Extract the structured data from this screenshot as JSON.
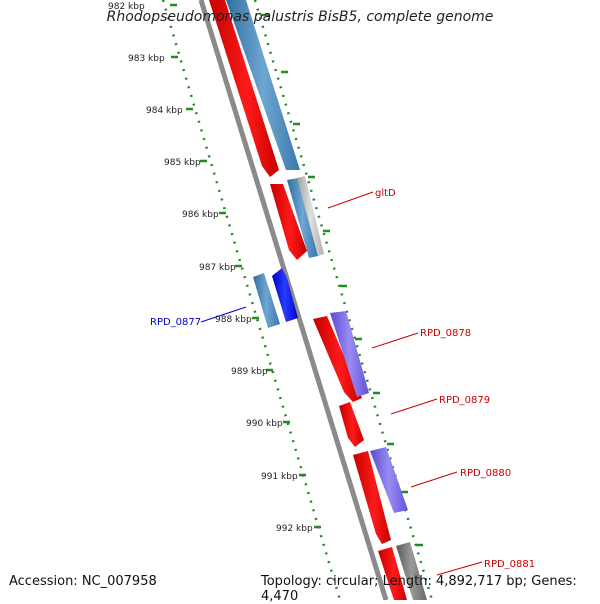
{
  "title": "Rhodopseudomonas palustris BisB5, complete genome",
  "footer": {
    "accession": "Accession: NC_007958",
    "summary": "Topology: circular; Length: 4,892,717 bp; Genes: 4,470"
  },
  "ruler_labels": [
    "982 kbp",
    "983 kbp",
    "984 kbp",
    "985 kbp",
    "986 kbp",
    "987 kbp",
    "988 kbp",
    "989 kbp",
    "990 kbp",
    "991 kbp",
    "992 kbp"
  ],
  "gene_labels": [
    {
      "text": "gltD",
      "color": "#cc0000"
    },
    {
      "text": "RPD_0877",
      "color": "#0000cc"
    },
    {
      "text": "RPD_0878",
      "color": "#cc0000"
    },
    {
      "text": "RPD_0879",
      "color": "#cc0000"
    },
    {
      "text": "RPD_0880",
      "color": "#cc0000"
    },
    {
      "text": "RPD_0881",
      "color": "#cc0000"
    }
  ],
  "colors": {
    "cds": "#ff0000",
    "backbone": "#8a8a8a",
    "ruler": "#228b22",
    "blast_blue": "#4682b4",
    "blast_purple": "#7b68ee",
    "blast_gray": "#7f7f7f",
    "reverse_cds": "#0000ff"
  }
}
